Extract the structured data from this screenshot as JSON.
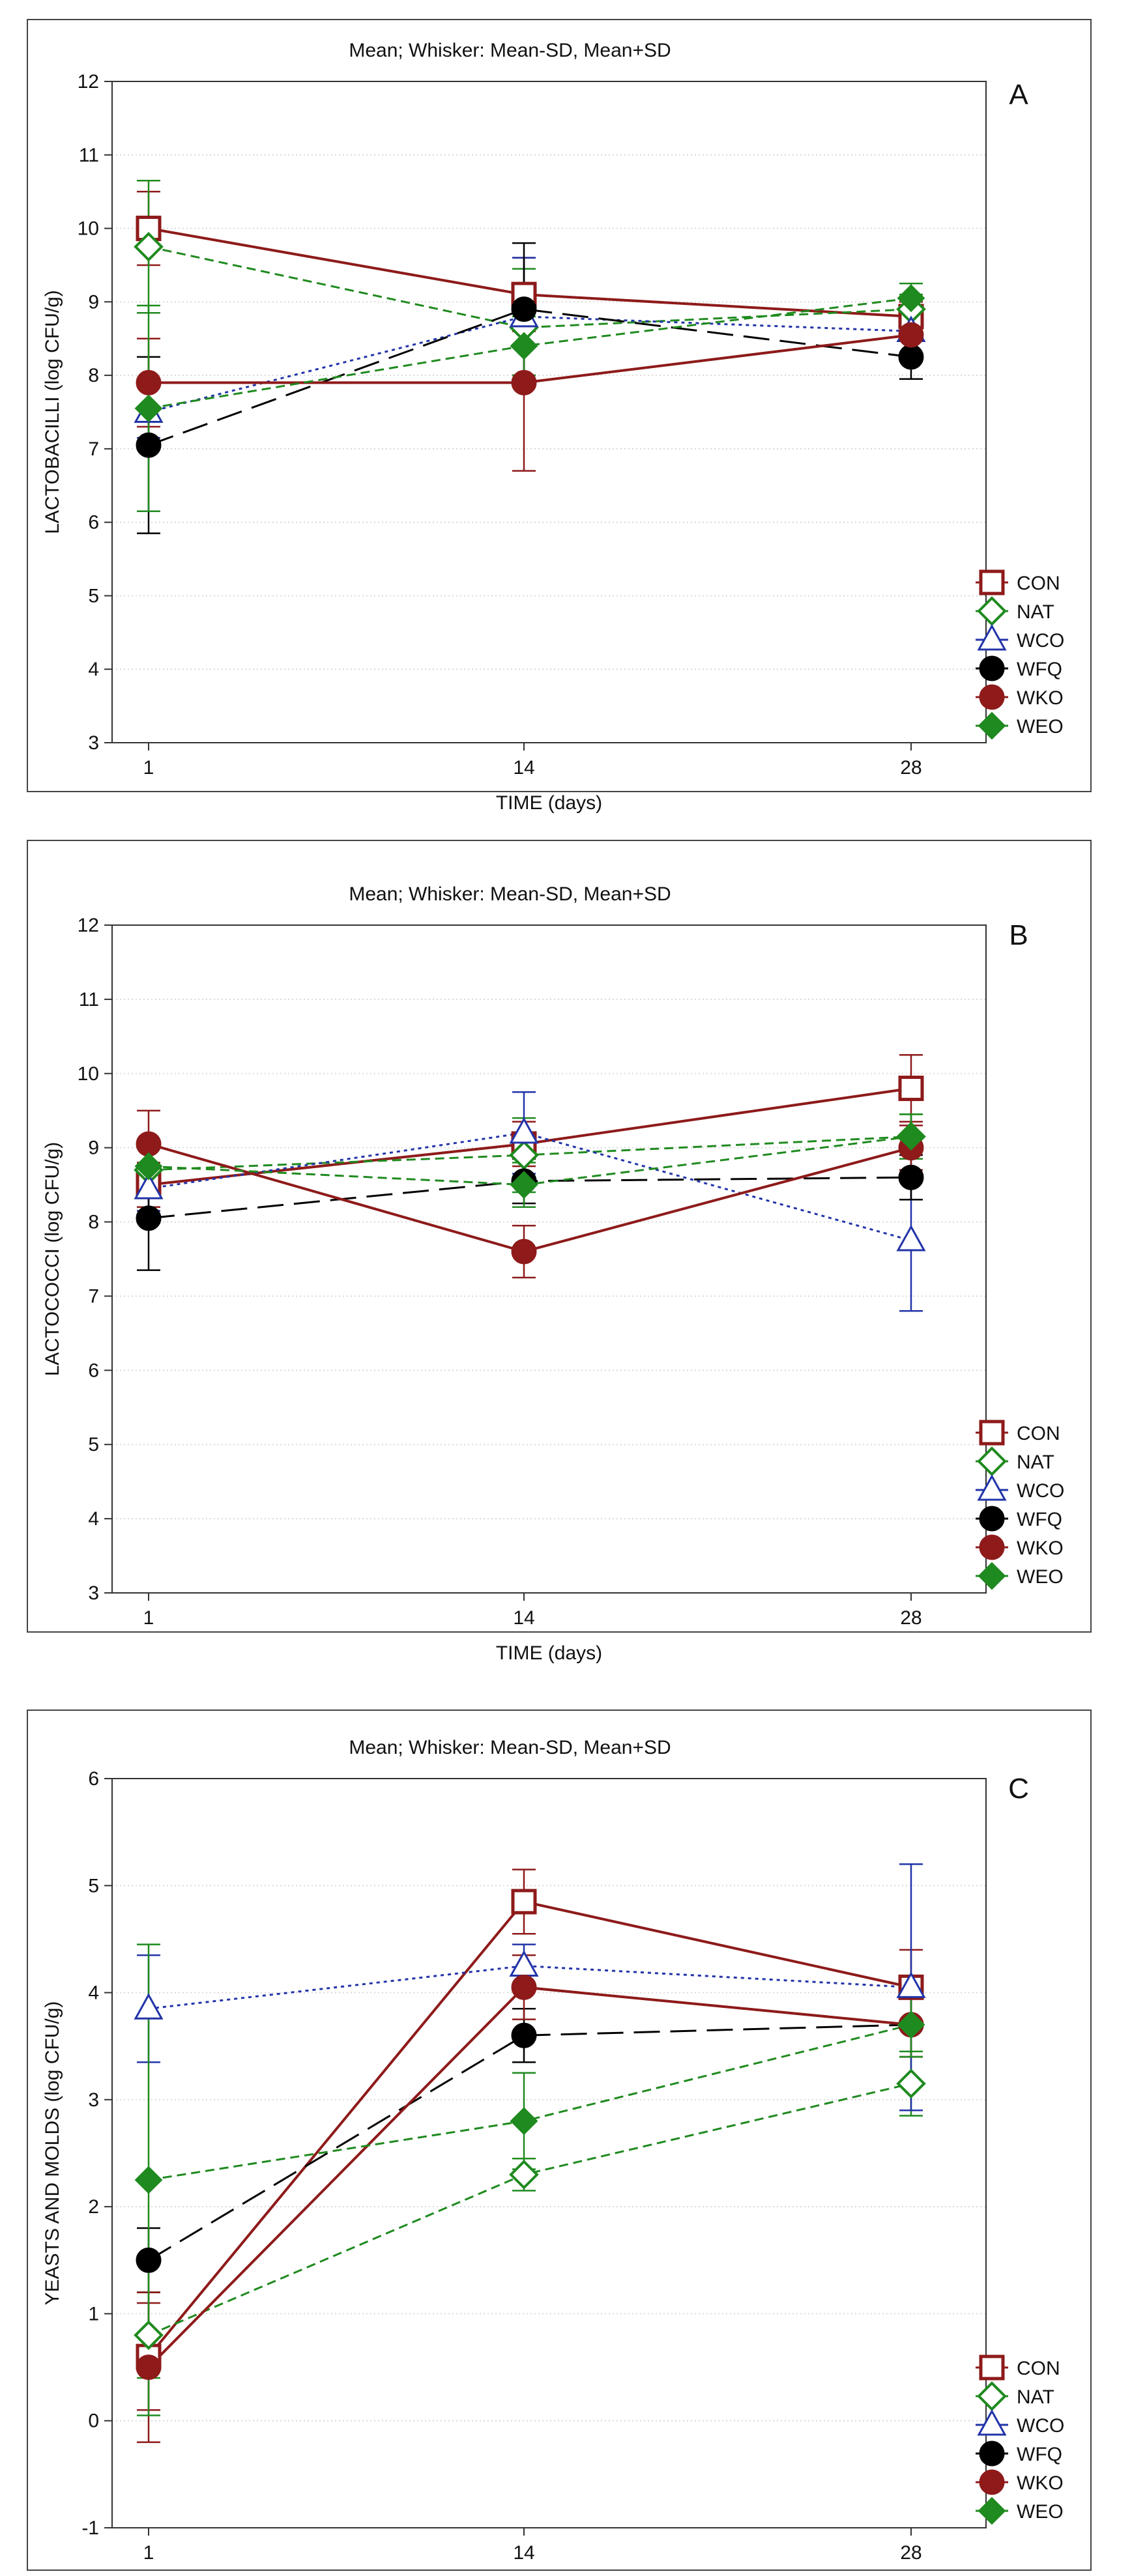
{
  "chart_data": [
    {
      "type": "line",
      "panel": "A",
      "title": "Mean;  Whisker: Mean-SD, Mean+SD",
      "xlabel": "TIME (days)",
      "ylabel": "LACTOBACILLI (log CFU/g)",
      "categories": [
        "1",
        "14",
        "28"
      ],
      "ylim": [
        3,
        12
      ],
      "yticks": [
        "3",
        "4",
        "5",
        "6",
        "7",
        "8",
        "9",
        "10",
        "11",
        "12"
      ],
      "series": [
        {
          "name": "CON",
          "values": [
            10.0,
            9.1,
            8.8
          ],
          "errors": [
            0.5,
            0.5,
            0.2
          ]
        },
        {
          "name": "NAT",
          "values": [
            9.75,
            8.65,
            8.9
          ],
          "errors": [
            0.9,
            0.8,
            0.2
          ]
        },
        {
          "name": "WCO",
          "values": [
            7.5,
            8.8,
            8.6
          ],
          "errors": [
            0.35,
            0.8,
            0.3
          ]
        },
        {
          "name": "WFQ",
          "values": [
            7.05,
            8.9,
            8.25
          ],
          "errors": [
            1.2,
            0.9,
            0.3
          ]
        },
        {
          "name": "WKO",
          "values": [
            7.9,
            7.9,
            8.55
          ],
          "errors": [
            0.6,
            1.2,
            0.3
          ]
        },
        {
          "name": "WEO",
          "values": [
            7.55,
            8.4,
            9.05
          ],
          "errors": [
            1.4,
            0.4,
            0.2
          ]
        }
      ]
    },
    {
      "type": "line",
      "panel": "B",
      "title": "Mean;  Whisker: Mean-SD, Mean+SD",
      "xlabel": "TIME (days)",
      "ylabel": "LACTOCOCCI (log CFU/g)",
      "categories": [
        "1",
        "14",
        "28"
      ],
      "ylim": [
        3,
        12
      ],
      "yticks": [
        "3",
        "4",
        "5",
        "6",
        "7",
        "8",
        "9",
        "10",
        "11",
        "12"
      ],
      "series": [
        {
          "name": "CON",
          "values": [
            8.5,
            9.05,
            9.8
          ],
          "errors": [
            0.3,
            0.3,
            0.45
          ]
        },
        {
          "name": "NAT",
          "values": [
            8.7,
            8.9,
            9.15
          ],
          "errors": [
            0.3,
            0.5,
            0.3
          ]
        },
        {
          "name": "WCO",
          "values": [
            8.45,
            9.2,
            7.75
          ],
          "errors": [
            0.3,
            0.55,
            0.95
          ]
        },
        {
          "name": "WFQ",
          "values": [
            8.05,
            8.55,
            8.6
          ],
          "errors": [
            0.7,
            0.3,
            0.3
          ]
        },
        {
          "name": "WKO",
          "values": [
            9.05,
            7.6,
            9.0
          ],
          "errors": [
            0.45,
            0.35,
            0.3
          ]
        },
        {
          "name": "WEO",
          "values": [
            8.75,
            8.5,
            9.15
          ],
          "errors": [
            0.3,
            0.3,
            0.3
          ]
        }
      ]
    },
    {
      "type": "line",
      "panel": "C",
      "title": "Mean;  Whisker: Mean-SD, Mean+SD",
      "xlabel": "TIME (days)",
      "ylabel": "YEASTS AND MOLDS (log CFU/g)",
      "categories": [
        "1",
        "14",
        "28"
      ],
      "ylim": [
        -1,
        6
      ],
      "yticks": [
        "-1",
        "0",
        "1",
        "2",
        "3",
        "4",
        "5",
        "6"
      ],
      "series": [
        {
          "name": "CON",
          "values": [
            0.6,
            4.85,
            4.05
          ],
          "errors": [
            0.5,
            0.3,
            0.35
          ]
        },
        {
          "name": "NAT",
          "values": [
            0.8,
            2.3,
            3.15
          ],
          "errors": [
            0.4,
            0.15,
            0.3
          ]
        },
        {
          "name": "WCO",
          "values": [
            3.85,
            4.25,
            4.05
          ],
          "errors": [
            0.5,
            0.2,
            1.15
          ]
        },
        {
          "name": "WFQ",
          "values": [
            1.5,
            3.6,
            3.7
          ],
          "errors": [
            0.3,
            0.25,
            0.3
          ]
        },
        {
          "name": "WKO",
          "values": [
            0.5,
            4.05,
            3.7
          ],
          "errors": [
            0.7,
            0.3,
            0.3
          ]
        },
        {
          "name": "WEO",
          "values": [
            2.25,
            2.8,
            3.7
          ],
          "errors": [
            2.2,
            0.45,
            0.3
          ]
        }
      ]
    }
  ],
  "colors": {
    "CON": "#8e1a1a",
    "NAT": "#1f8a1f",
    "WCO": "#2234a8",
    "WFQ": "#000000",
    "WKO": "#8e1a1a",
    "WEO": "#1f8a1f"
  }
}
